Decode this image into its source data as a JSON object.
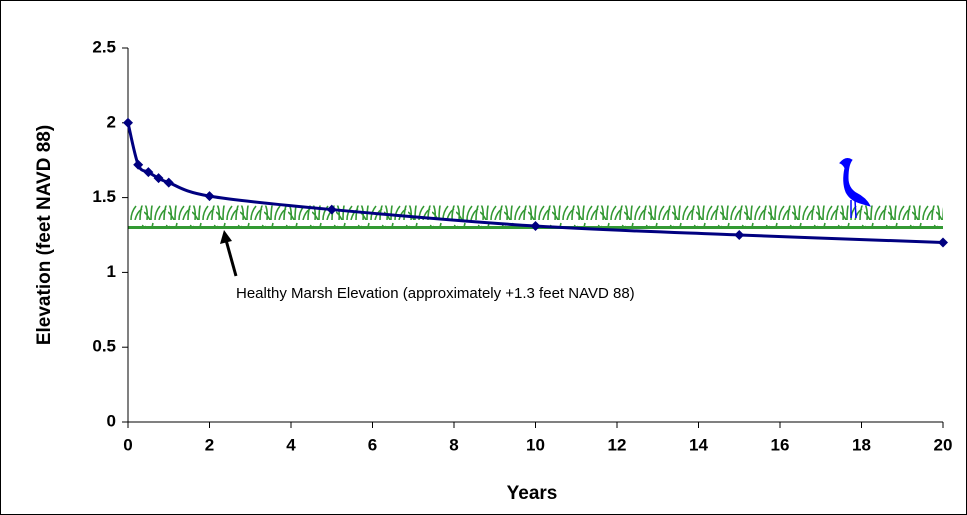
{
  "chart_data": {
    "type": "line",
    "x_label": "Years",
    "y_label": "Elevation (feet NAVD 88)",
    "annotation": "Healthy Marsh Elevation (approximately +1.3 feet NAVD 88)",
    "x": [
      0,
      0.25,
      0.5,
      0.75,
      1,
      2,
      5,
      10,
      15,
      20
    ],
    "series": [
      {
        "color": "#000080",
        "values": [
          2.0,
          1.72,
          1.67,
          1.63,
          1.6,
          1.51,
          1.42,
          1.31,
          1.25,
          1.2
        ]
      }
    ],
    "reference_line": {
      "value": 1.3,
      "color": "#339933"
    },
    "xlim": [
      0,
      20
    ],
    "xticks": [
      0,
      2,
      4,
      6,
      8,
      10,
      12,
      14,
      16,
      18,
      20
    ],
    "ylim": [
      0,
      2.5
    ],
    "yticks": [
      0,
      0.5,
      1,
      1.5,
      2,
      2.5
    ]
  }
}
